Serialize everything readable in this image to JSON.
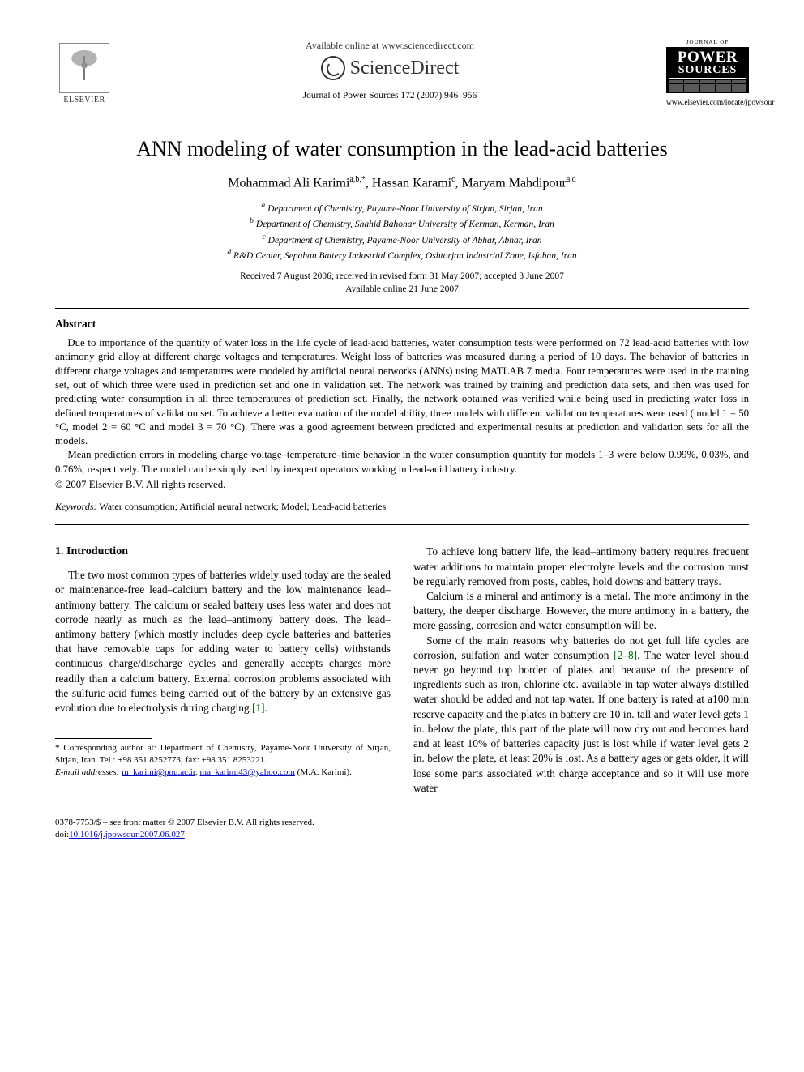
{
  "header": {
    "publisher_name": "ELSEVIER",
    "available_text": "Available online at www.sciencedirect.com",
    "sciencedirect": "ScienceDirect",
    "journal_citation": "Journal of Power Sources 172 (2007) 946–956",
    "journal_box": {
      "top": "JOURNAL OF",
      "line1": "POWER",
      "line2": "SOURCES"
    },
    "journal_url": "www.elsevier.com/locate/jpowsour"
  },
  "article": {
    "title": "ANN modeling of water consumption in the lead-acid batteries",
    "authors_html": "Mohammad Ali Karimi",
    "author1": "Mohammad Ali Karimi",
    "author1_sup": "a,b,*",
    "author2": "Hassan Karami",
    "author2_sup": "c",
    "author3": "Maryam Mahdipour",
    "author3_sup": "a,d",
    "affiliations": {
      "a": "Department of Chemistry, Payame-Noor University of Sirjan, Sirjan, Iran",
      "b": "Department of Chemistry, Shahid Bahonar University of Kerman, Kerman, Iran",
      "c": "Department of Chemistry, Payame-Noor University of Abhar, Abhar, Iran",
      "d": "R&D Center, Sepahan Battery Industrial Complex, Oshtorjan Industrial Zone, Isfahan, Iran"
    },
    "received": "Received 7 August 2006; received in revised form 31 May 2007; accepted 3 June 2007",
    "available": "Available online 21 June 2007"
  },
  "abstract": {
    "heading": "Abstract",
    "p1": "Due to importance of the quantity of water loss in the life cycle of lead-acid batteries, water consumption tests were performed on 72 lead-acid batteries with low antimony grid alloy at different charge voltages and temperatures. Weight loss of batteries was measured during a period of 10 days. The behavior of batteries in different charge voltages and temperatures were modeled by artificial neural networks (ANNs) using MATLAB 7 media. Four temperatures were used in the training set, out of which three were used in prediction set and one in validation set. The network was trained by training and prediction data sets, and then was used for predicting water consumption in all three temperatures of prediction set. Finally, the network obtained was verified while being used in predicting water loss in defined temperatures of validation set. To achieve a better evaluation of the model ability, three models with different validation temperatures were used (model 1 = 50 °C, model 2 = 60 °C and model 3 = 70 °C). There was a good agreement between predicted and experimental results at prediction and validation sets for all the models.",
    "p2": "Mean prediction errors in modeling charge voltage–temperature–time behavior in the water consumption quantity for models 1–3 were below 0.99%, 0.03%, and 0.76%, respectively. The model can be simply used by inexpert operators working in lead-acid battery industry.",
    "copyright": "© 2007 Elsevier B.V. All rights reserved.",
    "keywords_label": "Keywords:",
    "keywords": "Water consumption; Artificial neural network; Model; Lead-acid batteries"
  },
  "body": {
    "section_heading": "1.  Introduction",
    "left_p1": "The two most common types of batteries widely used today are the sealed or maintenance-free lead–calcium battery and the low maintenance lead–antimony battery. The calcium or sealed battery uses less water and does not corrode nearly as much as the lead–antimony battery does. The lead–antimony battery (which mostly includes deep cycle batteries and batteries that have removable caps for adding water to battery cells) withstands continuous charge/discharge cycles and generally accepts charges more readily than a calcium battery. External corrosion problems associated with the sulfuric acid fumes being carried out of the battery by an extensive gas evolution due to electrolysis during charging ",
    "ref1": "[1]",
    "left_p1_tail": ".",
    "right_p1": "To achieve long battery life, the lead–antimony battery requires frequent water additions to maintain proper electrolyte levels and the corrosion must be regularly removed from posts, cables, hold downs and battery trays.",
    "right_p2": "Calcium is a mineral and antimony is a metal. The more antimony in the battery, the deeper discharge. However, the more antimony in a battery, the more gassing, corrosion and water consumption will be.",
    "right_p3a": "Some of the main reasons why batteries do not get full life cycles are corrosion, sulfation and water consumption ",
    "ref2": "[2–8]",
    "right_p3b": ". The water level should never go beyond top border of plates and because of the presence of ingredients such as iron, chlorine etc. available in tap water always distilled water should be added and not tap water. If one battery is rated at a100 min reserve capacity and the plates in battery are 10 in. tall and water level gets 1 in. below the plate, this part of the plate will now dry out and becomes hard and at least 10% of batteries capacity just is lost while if water level gets 2 in. below the plate, at least 20% is lost. As a battery ages or gets older, it will lose some parts associated with charge acceptance and so it will use more water"
  },
  "footnote": {
    "corr": "* Corresponding author at: Department of Chemistry, Payame-Noor University of Sirjan, Sirjan, Iran. Tel.: +98 351 8252773; fax: +98 351 8253221.",
    "email_label": "E-mail addresses:",
    "email1": "m_karimi@pnu.ac.ir",
    "email2": "ma_karimi43@yahoo.com",
    "email_tail": "(M.A. Karimi)."
  },
  "footer": {
    "line1": "0378-7753/$ – see front matter © 2007 Elsevier B.V. All rights reserved.",
    "doi": "doi:10.1016/j.jpowsour.2007.06.027"
  },
  "colors": {
    "text": "#000000",
    "link": "#0000cc",
    "ref": "#006600",
    "background": "#ffffff"
  }
}
